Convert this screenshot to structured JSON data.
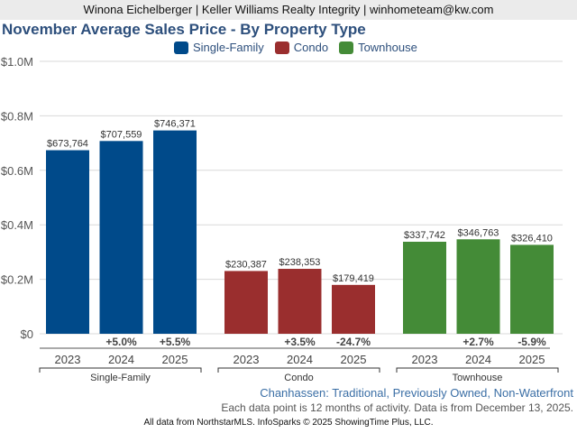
{
  "header": {
    "text": "Winona Eichelberger | Keller Williams Realty Integrity | winhometeam@kw.com"
  },
  "title": "November Average Sales Price - By Property Type",
  "legend": [
    {
      "label": "Single-Family",
      "color": "#004a8a"
    },
    {
      "label": "Condo",
      "color": "#9a2e2e"
    },
    {
      "label": "Townhouse",
      "color": "#448b37"
    }
  ],
  "subtitle": "Chanhassen: Traditional, Previously Owned, Non-Waterfront",
  "note": "Each data point is 12 months of activity. Data is from December 13, 2025.",
  "footer": "All data from NorthstarMLS. InfoSparks © 2025 ShowingTime Plus, LLC.",
  "chart_data": {
    "type": "bar",
    "title": "November Average Sales Price - By Property Type",
    "xlabel": "",
    "ylabel": "",
    "ylim": [
      0,
      1000000
    ],
    "yticks": [
      {
        "value": 0,
        "label": "$0"
      },
      {
        "value": 200000,
        "label": "$0.2M"
      },
      {
        "value": 400000,
        "label": "$0.4M"
      },
      {
        "value": 600000,
        "label": "$0.6M"
      },
      {
        "value": 800000,
        "label": "$0.8M"
      },
      {
        "value": 1000000,
        "label": "$1.0M"
      }
    ],
    "grid": true,
    "legend_position": "top-center",
    "categories": [
      "2023",
      "2024",
      "2025"
    ],
    "groups": [
      {
        "name": "Single-Family",
        "color": "#004a8a",
        "values": [
          673764,
          707559,
          746371
        ],
        "value_labels": [
          "$673,764",
          "$707,559",
          "$746,371"
        ],
        "changes": [
          "",
          "+5.0%",
          "+5.5%"
        ]
      },
      {
        "name": "Condo",
        "color": "#9a2e2e",
        "values": [
          230387,
          238353,
          179419
        ],
        "value_labels": [
          "$230,387",
          "$238,353",
          "$179,419"
        ],
        "changes": [
          "",
          "+3.5%",
          "-24.7%"
        ]
      },
      {
        "name": "Townhouse",
        "color": "#448b37",
        "values": [
          337742,
          346763,
          326410
        ],
        "value_labels": [
          "$337,742",
          "$346,763",
          "$326,410"
        ],
        "changes": [
          "",
          "+2.7%",
          "-5.9%"
        ]
      }
    ]
  }
}
